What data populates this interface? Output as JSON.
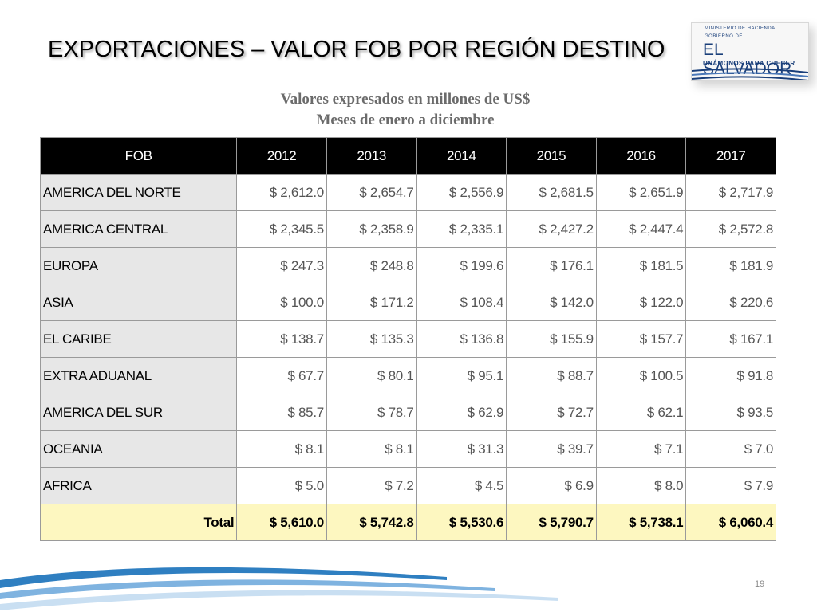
{
  "slide": {
    "title": "EXPORTACIONES –  VALOR FOB POR REGIÓN DESTINO",
    "subtitle_line1": "Valores expresados en millones de US$",
    "subtitle_line2": "Meses de enero a diciembre",
    "page_number": "19"
  },
  "logo": {
    "ministry": "MINISTERIO DE HACIENDA",
    "gobierno": "GOBIERNO DE",
    "name": "EL SALVADOR",
    "tagline": "UNÁMONOS PARA CRECER"
  },
  "table": {
    "header": [
      "FOB",
      "2012",
      "2013",
      "2014",
      "2015",
      "2016",
      "2017"
    ],
    "rows": [
      {
        "region": "AMERICA DEL NORTE",
        "values": [
          "$ 2,612.0",
          "$ 2,654.7",
          "$ 2,556.9",
          "$ 2,681.5",
          "$ 2,651.9",
          "$ 2,717.9"
        ]
      },
      {
        "region": "AMERICA CENTRAL",
        "values": [
          "$ 2,345.5",
          "$ 2,358.9",
          "$ 2,335.1",
          "$ 2,427.2",
          "$ 2,447.4",
          "$ 2,572.8"
        ]
      },
      {
        "region": "EUROPA",
        "values": [
          "$ 247.3",
          "$ 248.8",
          "$ 199.6",
          "$ 176.1",
          "$ 181.5",
          "$ 181.9"
        ]
      },
      {
        "region": "ASIA",
        "values": [
          "$ 100.0",
          "$ 171.2",
          "$ 108.4",
          "$ 142.0",
          "$ 122.0",
          "$ 220.6"
        ]
      },
      {
        "region": "EL CARIBE",
        "values": [
          "$ 138.7",
          "$ 135.3",
          "$ 136.8",
          "$ 155.9",
          "$ 157.7",
          "$ 167.1"
        ]
      },
      {
        "region": "EXTRA ADUANAL",
        "values": [
          "$ 67.7",
          "$ 80.1",
          "$ 95.1",
          "$ 88.7",
          "$ 100.5",
          "$ 91.8"
        ]
      },
      {
        "region": "AMERICA DEL SUR",
        "values": [
          "$ 85.7",
          "$ 78.7",
          "$ 62.9",
          "$ 72.7",
          "$ 62.1",
          "$ 93.5"
        ]
      },
      {
        "region": "OCEANIA",
        "values": [
          "$ 8.1",
          "$ 8.1",
          "$ 31.3",
          "$ 39.7",
          "$ 7.1",
          "$ 7.0"
        ]
      },
      {
        "region": "AFRICA",
        "values": [
          "$ 5.0",
          "$ 7.2",
          "$ 4.5",
          "$ 6.9",
          "$ 8.0",
          "$ 7.9"
        ]
      }
    ],
    "total": {
      "label": "Total",
      "values": [
        "$ 5,610.0",
        "$ 5,742.8",
        "$ 5,530.6",
        "$ 5,790.7",
        "$ 5,738.1",
        "$ 6,060.4"
      ]
    }
  },
  "colors": {
    "header_bg": "#000000",
    "region_bg": "#e7e7e7",
    "total_bg": "#fdf7c0",
    "swoosh_blue": "#2f7fc1",
    "logo_blue": "#1a3f7a"
  }
}
